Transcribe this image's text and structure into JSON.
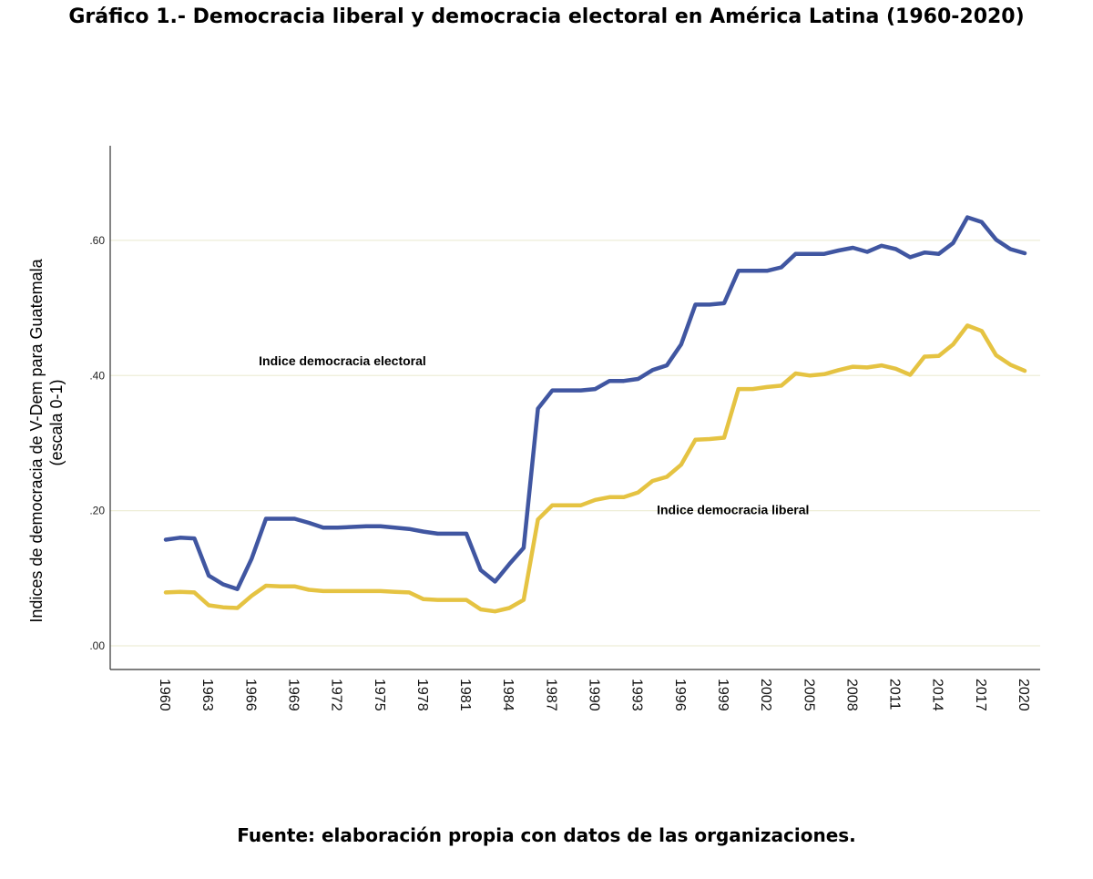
{
  "title": "Gráfico 1.- Democracia liberal y democracia electoral en América Latina (1960-2020)",
  "source": "Fuente: elaboración propia con datos de las organizaciones.",
  "colors": {
    "electoral": "#4056a1",
    "liberal": "#e5c342",
    "gridline": "#eeeed8",
    "axis": "#333333"
  },
  "chart_data": {
    "type": "line",
    "title": "Gráfico 1.- Democracia liberal y democracia electoral en América Latina (1960-2020)",
    "xlabel": "",
    "ylabel": [
      "Indices de democracia de V-Dem para Guatemala",
      "(escala 0-1)"
    ],
    "ylim": [
      -0.035,
      0.74
    ],
    "y_ticks": [
      0.0,
      0.2,
      0.4,
      0.6
    ],
    "y_tick_labels": [
      ".00",
      ".20",
      ".40",
      ".60"
    ],
    "x_tick_labels": [
      "1960",
      "1963",
      "1966",
      "1969",
      "1972",
      "1975",
      "1978",
      "1981",
      "1984",
      "1987",
      "1990",
      "1993",
      "1996",
      "1999",
      "2002",
      "2005",
      "2008",
      "2011",
      "2014",
      "2017",
      "2020"
    ],
    "grid": "horizontal",
    "legend": "inline labels",
    "x": [
      1960,
      1961,
      1962,
      1963,
      1964,
      1965,
      1966,
      1967,
      1968,
      1969,
      1970,
      1971,
      1972,
      1973,
      1974,
      1975,
      1976,
      1977,
      1978,
      1979,
      1980,
      1981,
      1982,
      1983,
      1984,
      1985,
      1986,
      1987,
      1988,
      1989,
      1990,
      1991,
      1992,
      1993,
      1994,
      1995,
      1996,
      1997,
      1998,
      1999,
      2000,
      2001,
      2002,
      2003,
      2004,
      2005,
      2006,
      2007,
      2008,
      2009,
      2010,
      2011,
      2012,
      2013,
      2014,
      2015,
      2016,
      2017,
      2018,
      2019,
      2020
    ],
    "series": [
      {
        "name": "Indice democracia electoral",
        "key": "electoral",
        "label_position": {
          "x": 1966.5,
          "y": 0.415
        },
        "values": [
          0.157,
          0.16,
          0.159,
          0.104,
          0.091,
          0.084,
          0.129,
          0.188,
          0.188,
          0.188,
          0.182,
          0.175,
          0.175,
          0.176,
          0.177,
          0.177,
          0.175,
          0.173,
          0.169,
          0.166,
          0.166,
          0.166,
          0.112,
          0.095,
          0.121,
          0.145,
          0.351,
          0.378,
          0.378,
          0.378,
          0.38,
          0.392,
          0.392,
          0.395,
          0.408,
          0.415,
          0.446,
          0.505,
          0.505,
          0.507,
          0.555,
          0.555,
          0.555,
          0.56,
          0.58,
          0.58,
          0.58,
          0.585,
          0.589,
          0.583,
          0.592,
          0.587,
          0.575,
          0.582,
          0.58,
          0.596,
          0.634,
          0.627,
          0.601,
          0.587,
          0.581
        ]
      },
      {
        "name": "Indice democracia liberal",
        "key": "liberal",
        "label_position": {
          "x": 1994.3,
          "y": 0.195
        },
        "values": [
          0.079,
          0.08,
          0.079,
          0.06,
          0.057,
          0.056,
          0.074,
          0.089,
          0.088,
          0.088,
          0.083,
          0.081,
          0.081,
          0.081,
          0.081,
          0.081,
          0.08,
          0.079,
          0.069,
          0.068,
          0.068,
          0.068,
          0.054,
          0.051,
          0.056,
          0.068,
          0.187,
          0.208,
          0.208,
          0.208,
          0.216,
          0.22,
          0.22,
          0.227,
          0.244,
          0.25,
          0.268,
          0.305,
          0.306,
          0.308,
          0.38,
          0.38,
          0.383,
          0.385,
          0.403,
          0.4,
          0.402,
          0.408,
          0.413,
          0.412,
          0.415,
          0.41,
          0.401,
          0.428,
          0.429,
          0.446,
          0.474,
          0.466,
          0.43,
          0.416,
          0.407
        ]
      }
    ]
  }
}
